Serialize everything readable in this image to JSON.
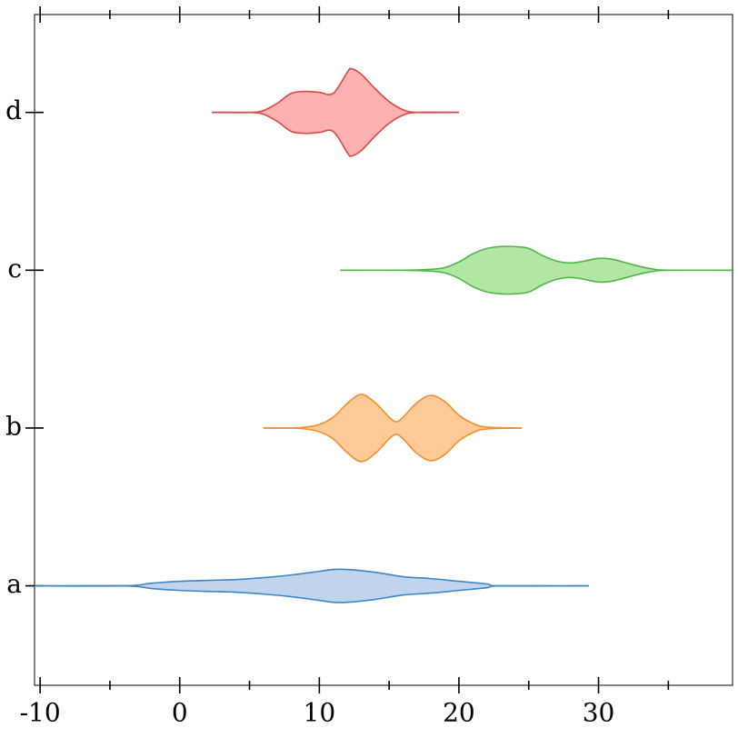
{
  "chart_data": {
    "type": "violin",
    "orientation": "horizontal",
    "categories": [
      "a",
      "b",
      "c",
      "d"
    ],
    "xlim": [
      -10.4,
      39.6
    ],
    "xticks": [
      -10,
      0,
      10,
      20,
      30
    ],
    "xminorticks": [
      -5,
      5,
      15,
      25,
      35
    ],
    "ylim": [
      -0.63,
      3.62
    ],
    "series": [
      {
        "name": "a",
        "color": "#3f87c4",
        "fill": "#c0d4ee",
        "x": [
          -10.4,
          -4,
          -2,
          0,
          2,
          4,
          6,
          8,
          10,
          11,
          12,
          14,
          16,
          18,
          20,
          22,
          23,
          29.3
        ],
        "widths": [
          0,
          0,
          0.017,
          0.029,
          0.035,
          0.04,
          0.052,
          0.069,
          0.092,
          0.104,
          0.104,
          0.086,
          0.058,
          0.046,
          0.029,
          0.012,
          0,
          0
        ]
      },
      {
        "name": "b",
        "color": "#f28e2b",
        "fill": "#fecb98",
        "x": [
          6,
          8,
          9,
          10,
          11,
          12,
          13,
          14,
          15,
          15.5,
          16,
          17,
          18,
          19,
          20,
          21,
          22,
          24.5
        ],
        "widths": [
          0,
          0,
          0.006,
          0.023,
          0.069,
          0.156,
          0.213,
          0.161,
          0.069,
          0.04,
          0.069,
          0.161,
          0.207,
          0.167,
          0.081,
          0.029,
          0.006,
          0
        ]
      },
      {
        "name": "c",
        "color": "#52b548",
        "fill": "#b2e6a4",
        "x": [
          11.5,
          16,
          18,
          19,
          20,
          21,
          22,
          23,
          24,
          25,
          26,
          27,
          28,
          29,
          30,
          31,
          32,
          33,
          34,
          35,
          39.6
        ],
        "widths": [
          0,
          0,
          0.006,
          0.017,
          0.052,
          0.104,
          0.138,
          0.15,
          0.15,
          0.138,
          0.092,
          0.058,
          0.046,
          0.058,
          0.075,
          0.069,
          0.046,
          0.023,
          0.006,
          0,
          0
        ]
      },
      {
        "name": "d",
        "color": "#d94848",
        "fill": "#ffb0b0",
        "x": [
          2.3,
          5,
          6,
          7,
          8,
          9,
          10,
          11,
          12,
          12.3,
          13,
          14,
          15,
          16,
          17,
          20
        ],
        "widths": [
          0,
          0,
          0.012,
          0.058,
          0.121,
          0.133,
          0.127,
          0.121,
          0.254,
          0.277,
          0.242,
          0.15,
          0.069,
          0.017,
          0,
          0
        ]
      }
    ]
  }
}
